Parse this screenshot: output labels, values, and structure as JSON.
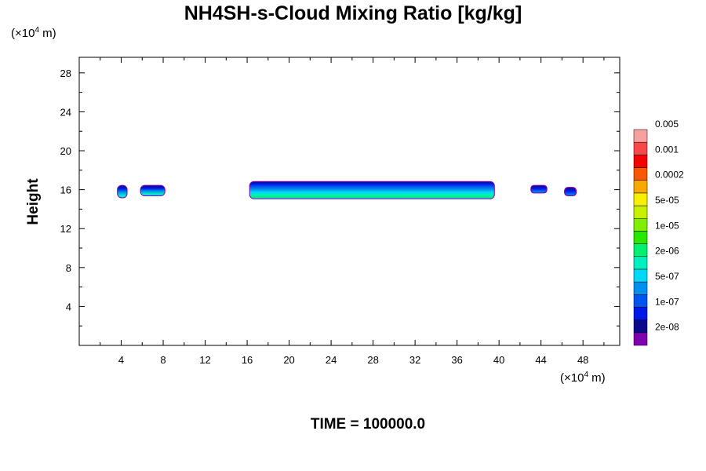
{
  "chart_data": {
    "type": "heatmap",
    "title": "NH4SH-s-Cloud Mixing Ratio [kg/kg]",
    "ylabel": "Height",
    "x_unit_label": "(×10",
    "x_unit_exp": "4",
    "x_unit_suffix": " m)",
    "y_unit_label": "(×10",
    "y_unit_exp": "4",
    "y_unit_suffix": " m)",
    "xlim": [
      0,
      51.5
    ],
    "ylim": [
      0,
      29.6
    ],
    "x_ticks": [
      4,
      8,
      12,
      16,
      20,
      24,
      28,
      32,
      36,
      40,
      44,
      48
    ],
    "y_ticks": [
      4,
      8,
      12,
      16,
      20,
      24,
      28
    ],
    "time_label": "TIME = 100000.0",
    "colorbar": {
      "colors": [
        "#8000b0",
        "#0a0a8c",
        "#0018e8",
        "#0055f0",
        "#0090f0",
        "#00d8f8",
        "#00f0c0",
        "#00f070",
        "#28e800",
        "#80f000",
        "#c8f000",
        "#f8f000",
        "#f8a800",
        "#f85800",
        "#f80000",
        "#f84848",
        "#f8a0a0"
      ],
      "labels": [
        "2e-08",
        "1e-07",
        "5e-07",
        "2e-06",
        "1e-05",
        "5e-05",
        "0.0002",
        "0.001",
        "0.005"
      ]
    },
    "cloud_regions": [
      {
        "x_range": [
          3.6,
          4.6
        ],
        "y_range": [
          15.2,
          16.4
        ],
        "max_level": "2e-06"
      },
      {
        "x_range": [
          5.8,
          8.2
        ],
        "y_range": [
          15.4,
          16.4
        ],
        "max_level": "5e-07"
      },
      {
        "x_range": [
          16.2,
          39.6
        ],
        "y_range": [
          15.1,
          16.8
        ],
        "max_level": "1e-05"
      },
      {
        "x_range": [
          43.0,
          44.6
        ],
        "y_range": [
          15.7,
          16.4
        ],
        "max_level": "1e-07"
      },
      {
        "x_range": [
          46.2,
          47.4
        ],
        "y_range": [
          15.4,
          16.2
        ],
        "max_level": "1e-07"
      }
    ]
  }
}
